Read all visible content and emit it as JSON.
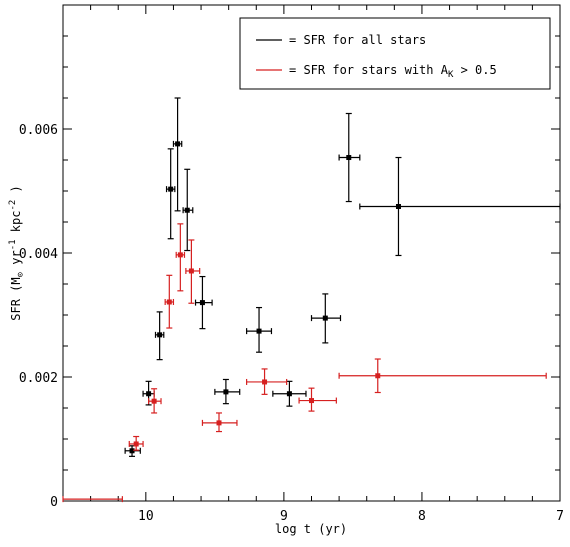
{
  "chart_data": {
    "type": "scatter",
    "xlabel": "log t (yr)",
    "ylabel_main": "SFR (M",
    "ylabel_rest": " yr",
    "ylabel_unit": " kpc",
    "ylabel_sup1": "-1",
    "ylabel_sup2": "-2",
    "ylabel_close": " )",
    "xlim": [
      10.6,
      7.0
    ],
    "ylim": [
      0,
      0.008
    ],
    "x_ticks": [
      {
        "value": 10,
        "label": "10"
      },
      {
        "value": 9,
        "label": "9"
      },
      {
        "value": 8,
        "label": "8"
      },
      {
        "value": 7,
        "label": "7"
      }
    ],
    "y_ticks": [
      {
        "value": 0,
        "label": "0"
      },
      {
        "value": 0.002,
        "label": "0.002"
      },
      {
        "value": 0.004,
        "label": "0.004"
      },
      {
        "value": 0.006,
        "label": "0.006"
      }
    ],
    "legend": {
      "position": "top-right",
      "all_prefix": "= SFR for all stars",
      "red_prefix": "= SFR for stars with A",
      "red_sub": "K",
      "red_suffix": " > 0.5"
    },
    "series": [
      {
        "key": "all",
        "color": "#000000",
        "points": [
          {
            "x": 10.1,
            "y": 0.00081,
            "xerr": [
              10.15,
              10.04
            ],
            "yerr": [
              0.00072,
              0.00089
            ]
          },
          {
            "x": 9.98,
            "y": 0.00173,
            "xerr": [
              10.02,
              9.94
            ],
            "yerr": [
              0.00155,
              0.00193
            ]
          },
          {
            "x": 9.9,
            "y": 0.00268,
            "xerr": [
              9.93,
              9.87
            ],
            "yerr": [
              0.00228,
              0.00305
            ]
          },
          {
            "x": 9.82,
            "y": 0.00503,
            "xerr": [
              9.85,
              9.79
            ],
            "yerr": [
              0.00423,
              0.00568
            ]
          },
          {
            "x": 9.77,
            "y": 0.00576,
            "xerr": [
              9.8,
              9.74
            ],
            "yerr": [
              0.00468,
              0.0065
            ]
          },
          {
            "x": 9.7,
            "y": 0.00469,
            "xerr": [
              9.73,
              9.66
            ],
            "yerr": [
              0.00404,
              0.00535
            ]
          },
          {
            "x": 9.59,
            "y": 0.0032,
            "xerr": [
              9.64,
              9.52
            ],
            "yerr": [
              0.00278,
              0.00362
            ]
          },
          {
            "x": 9.42,
            "y": 0.00176,
            "xerr": [
              9.5,
              9.32
            ],
            "yerr": [
              0.00157,
              0.00196
            ]
          },
          {
            "x": 9.18,
            "y": 0.00274,
            "xerr": [
              9.27,
              9.09
            ],
            "yerr": [
              0.0024,
              0.00312
            ]
          },
          {
            "x": 8.96,
            "y": 0.00173,
            "xerr": [
              9.08,
              8.84
            ],
            "yerr": [
              0.00153,
              0.00193
            ]
          },
          {
            "x": 8.7,
            "y": 0.00295,
            "xerr": [
              8.8,
              8.59
            ],
            "yerr": [
              0.00255,
              0.00334
            ]
          },
          {
            "x": 8.53,
            "y": 0.00554,
            "xerr": [
              8.6,
              8.45
            ],
            "yerr": [
              0.00483,
              0.00625
            ]
          },
          {
            "x": 8.17,
            "y": 0.00475,
            "xerr": [
              8.45,
              7.0
            ],
            "yerr": [
              0.00396,
              0.00554
            ]
          }
        ]
      },
      {
        "key": "red",
        "color": "#d62020",
        "points": [
          {
            "x": 10.6,
            "y": 3e-05,
            "xerr": [
              10.6,
              10.17
            ],
            "yerr": [
              3e-05,
              3e-05
            ]
          },
          {
            "x": 10.07,
            "y": 0.00092,
            "xerr": [
              10.12,
              10.02
            ],
            "yerr": [
              0.00082,
              0.00104
            ]
          },
          {
            "x": 9.94,
            "y": 0.00161,
            "xerr": [
              9.98,
              9.89
            ],
            "yerr": [
              0.00142,
              0.00181
            ]
          },
          {
            "x": 9.83,
            "y": 0.00321,
            "xerr": [
              9.86,
              9.8
            ],
            "yerr": [
              0.00279,
              0.00364
            ]
          },
          {
            "x": 9.75,
            "y": 0.00397,
            "xerr": [
              9.78,
              9.72
            ],
            "yerr": [
              0.00339,
              0.00447
            ]
          },
          {
            "x": 9.67,
            "y": 0.00371,
            "xerr": [
              9.71,
              9.61
            ],
            "yerr": [
              0.00319,
              0.00421
            ]
          },
          {
            "x": 9.47,
            "y": 0.00126,
            "xerr": [
              9.59,
              9.34
            ],
            "yerr": [
              0.00112,
              0.00142
            ]
          },
          {
            "x": 9.14,
            "y": 0.00192,
            "xerr": [
              9.27,
              8.98
            ],
            "yerr": [
              0.00172,
              0.00213
            ]
          },
          {
            "x": 8.8,
            "y": 0.00162,
            "xerr": [
              8.89,
              8.62
            ],
            "yerr": [
              0.00145,
              0.00182
            ]
          },
          {
            "x": 8.32,
            "y": 0.00202,
            "xerr": [
              8.6,
              7.1
            ],
            "yerr": [
              0.00175,
              0.00229
            ]
          }
        ]
      }
    ]
  }
}
